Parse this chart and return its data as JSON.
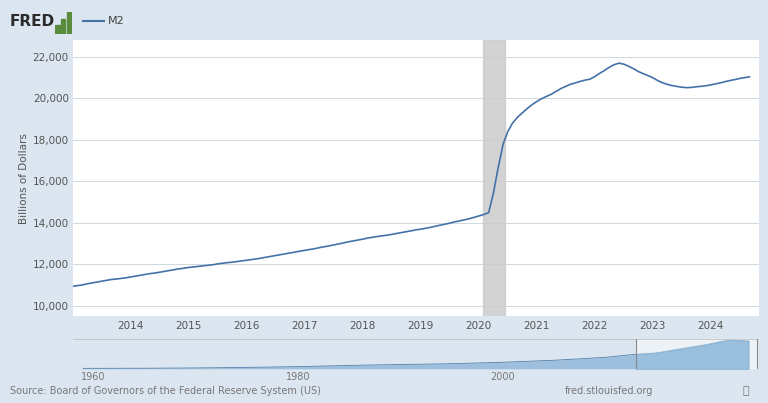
{
  "title": "M2",
  "ylabel": "Billions of Dollars",
  "bg_color": "#dce6f0",
  "plot_bg": "#ffffff",
  "line_color": "#4472a8",
  "yticks": [
    10000,
    12000,
    14000,
    16000,
    18000,
    20000,
    22000
  ],
  "ylim": [
    9500,
    22800
  ],
  "xlim": [
    2013.0,
    2024.83
  ],
  "xticks": [
    2014,
    2015,
    2016,
    2017,
    2018,
    2019,
    2020,
    2021,
    2022,
    2023,
    2024
  ],
  "recession_start": 2020.08,
  "recession_end": 2020.45,
  "source_text": "Source: Board of Governors of the Federal Reserve System (US)",
  "url_text": "fred.stlouisfed.org",
  "data": {
    "years": [
      2013.0,
      2013.08,
      2013.17,
      2013.25,
      2013.33,
      2013.42,
      2013.5,
      2013.58,
      2013.67,
      2013.75,
      2013.83,
      2013.92,
      2014.0,
      2014.08,
      2014.17,
      2014.25,
      2014.33,
      2014.42,
      2014.5,
      2014.58,
      2014.67,
      2014.75,
      2014.83,
      2014.92,
      2015.0,
      2015.08,
      2015.17,
      2015.25,
      2015.33,
      2015.42,
      2015.5,
      2015.58,
      2015.67,
      2015.75,
      2015.83,
      2015.92,
      2016.0,
      2016.08,
      2016.17,
      2016.25,
      2016.33,
      2016.42,
      2016.5,
      2016.58,
      2016.67,
      2016.75,
      2016.83,
      2016.92,
      2017.0,
      2017.08,
      2017.17,
      2017.25,
      2017.33,
      2017.42,
      2017.5,
      2017.58,
      2017.67,
      2017.75,
      2017.83,
      2017.92,
      2018.0,
      2018.08,
      2018.17,
      2018.25,
      2018.33,
      2018.42,
      2018.5,
      2018.58,
      2018.67,
      2018.75,
      2018.83,
      2018.92,
      2019.0,
      2019.08,
      2019.17,
      2019.25,
      2019.33,
      2019.42,
      2019.5,
      2019.58,
      2019.67,
      2019.75,
      2019.83,
      2019.92,
      2020.0,
      2020.08,
      2020.17,
      2020.25,
      2020.33,
      2020.42,
      2020.5,
      2020.58,
      2020.67,
      2020.75,
      2020.83,
      2020.92,
      2021.0,
      2021.08,
      2021.17,
      2021.25,
      2021.33,
      2021.42,
      2021.5,
      2021.58,
      2021.67,
      2021.75,
      2021.83,
      2021.92,
      2022.0,
      2022.08,
      2022.17,
      2022.25,
      2022.33,
      2022.42,
      2022.5,
      2022.58,
      2022.67,
      2022.75,
      2022.83,
      2022.92,
      2023.0,
      2023.08,
      2023.17,
      2023.25,
      2023.33,
      2023.42,
      2023.5,
      2023.58,
      2023.67,
      2023.75,
      2023.83,
      2023.92,
      2024.0,
      2024.08,
      2024.17,
      2024.25,
      2024.33,
      2024.42,
      2024.5,
      2024.58,
      2024.67
    ],
    "values": [
      10950,
      10980,
      11020,
      11070,
      11110,
      11150,
      11200,
      11240,
      11280,
      11300,
      11330,
      11360,
      11400,
      11440,
      11480,
      11520,
      11560,
      11590,
      11630,
      11670,
      11710,
      11750,
      11790,
      11820,
      11860,
      11880,
      11910,
      11940,
      11960,
      11990,
      12030,
      12060,
      12090,
      12110,
      12140,
      12170,
      12200,
      12230,
      12270,
      12310,
      12350,
      12390,
      12430,
      12470,
      12520,
      12560,
      12600,
      12640,
      12680,
      12720,
      12760,
      12810,
      12850,
      12890,
      12940,
      12990,
      13040,
      13090,
      13130,
      13170,
      13220,
      13270,
      13310,
      13350,
      13380,
      13410,
      13450,
      13490,
      13530,
      13570,
      13620,
      13670,
      13700,
      13740,
      13790,
      13840,
      13890,
      13940,
      13990,
      14050,
      14100,
      14150,
      14200,
      14270,
      14330,
      14400,
      14500,
      15400,
      16600,
      17800,
      18400,
      18800,
      19100,
      19300,
      19500,
      19700,
      19850,
      19980,
      20100,
      20200,
      20330,
      20480,
      20580,
      20680,
      20750,
      20820,
      20880,
      20930,
      21050,
      21200,
      21350,
      21500,
      21620,
      21700,
      21650,
      21560,
      21430,
      21300,
      21200,
      21100,
      21000,
      20870,
      20750,
      20680,
      20620,
      20580,
      20540,
      20520,
      20530,
      20560,
      20580,
      20610,
      20650,
      20700,
      20750,
      20810,
      20860,
      20910,
      20960,
      21000,
      21040
    ]
  },
  "mini_known_years": [
    1959,
    1965,
    1970,
    1975,
    1980,
    1985,
    1990,
    1995,
    2000,
    2005,
    2008,
    2010,
    2013,
    2015,
    2020,
    2022,
    2024
  ],
  "mini_known_values": [
    290,
    380,
    600,
    1000,
    1600,
    2500,
    3200,
    3800,
    4900,
    6400,
    7700,
    8600,
    10950,
    12000,
    18400,
    21700,
    21040
  ],
  "mini_highlight_start": 2013.0,
  "mini_highlight_end": 2024.83
}
